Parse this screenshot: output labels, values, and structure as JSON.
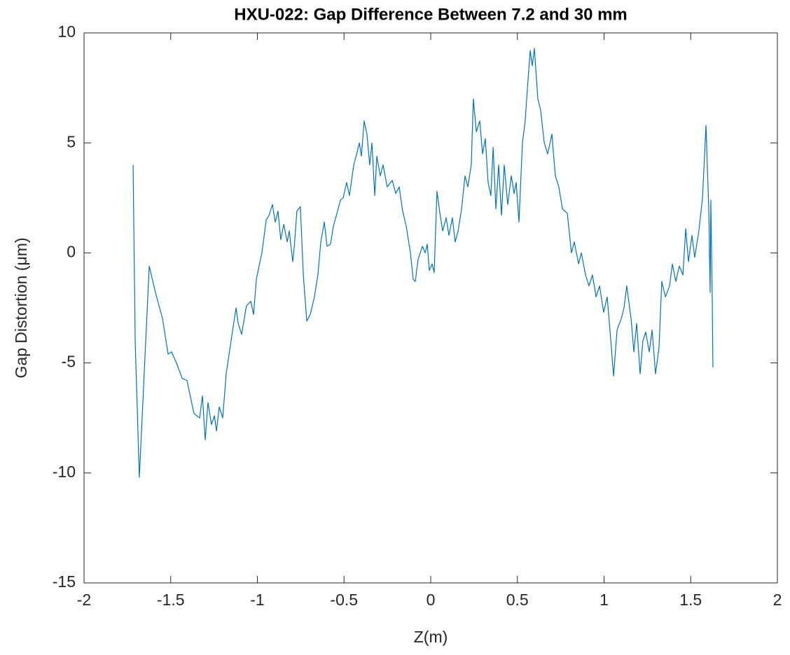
{
  "chart_data": {
    "type": "line",
    "title": "HXU-022: Gap Difference Between 7.2 and 30 mm",
    "x_label": "Z(m)",
    "y_label": "Gap Distortion (μm)",
    "color": "#0072bd",
    "grid": false,
    "xlim": [
      -2,
      2
    ],
    "xticks": [
      -2,
      -1.5,
      -1,
      -0.5,
      0,
      0.5,
      1,
      1.5,
      2
    ],
    "ylim": [
      -15,
      10
    ],
    "yticks": [
      -15,
      -10,
      -5,
      0,
      5,
      10
    ],
    "x": [
      -1.717,
      -1.705,
      -1.681,
      -1.624,
      -1.588,
      -1.547,
      -1.515,
      -1.495,
      -1.467,
      -1.434,
      -1.406,
      -1.366,
      -1.333,
      -1.317,
      -1.301,
      -1.285,
      -1.265,
      -1.248,
      -1.236,
      -1.22,
      -1.2,
      -1.18,
      -1.152,
      -1.123,
      -1.111,
      -1.091,
      -1.063,
      -1.038,
      -1.022,
      -1.006,
      -0.974,
      -0.949,
      -0.933,
      -0.913,
      -0.897,
      -0.881,
      -0.865,
      -0.848,
      -0.828,
      -0.816,
      -0.796,
      -0.788,
      -0.772,
      -0.752,
      -0.735,
      -0.715,
      -0.695,
      -0.671,
      -0.651,
      -0.634,
      -0.614,
      -0.598,
      -0.578,
      -0.562,
      -0.541,
      -0.521,
      -0.505,
      -0.485,
      -0.469,
      -0.444,
      -0.424,
      -0.412,
      -0.4,
      -0.384,
      -0.368,
      -0.352,
      -0.339,
      -0.323,
      -0.311,
      -0.291,
      -0.275,
      -0.251,
      -0.222,
      -0.202,
      -0.182,
      -0.162,
      -0.141,
      -0.117,
      -0.101,
      -0.089,
      -0.073,
      -0.048,
      -0.032,
      -0.02,
      -0.008,
      0.008,
      0.02,
      0.036,
      0.053,
      0.069,
      0.089,
      0.105,
      0.125,
      0.141,
      0.158,
      0.178,
      0.198,
      0.214,
      0.234,
      0.246,
      0.263,
      0.283,
      0.299,
      0.315,
      0.331,
      0.347,
      0.36,
      0.376,
      0.392,
      0.408,
      0.424,
      0.444,
      0.465,
      0.481,
      0.493,
      0.509,
      0.529,
      0.545,
      0.558,
      0.574,
      0.586,
      0.598,
      0.618,
      0.634,
      0.655,
      0.675,
      0.699,
      0.719,
      0.739,
      0.76,
      0.788,
      0.812,
      0.828,
      0.853,
      0.869,
      0.893,
      0.913,
      0.933,
      0.954,
      0.974,
      0.998,
      1.018,
      1.034,
      1.055,
      1.075,
      1.099,
      1.115,
      1.131,
      1.156,
      1.172,
      1.188,
      1.208,
      1.224,
      1.24,
      1.261,
      1.277,
      1.297,
      1.317,
      1.333,
      1.354,
      1.378,
      1.394,
      1.414,
      1.434,
      1.455,
      1.471,
      1.487,
      1.507,
      1.523,
      1.547,
      1.568,
      1.588,
      1.604,
      1.612,
      1.616,
      1.624,
      1.628
    ],
    "values": [
      4,
      -4,
      -10.2,
      -0.6,
      -1.8,
      -3,
      -4.6,
      -4.5,
      -5,
      -5.7,
      -5.8,
      -7.3,
      -7.5,
      -6.5,
      -8.5,
      -6.8,
      -7.8,
      -7.4,
      -8.1,
      -7,
      -7.5,
      -5.5,
      -4,
      -2.5,
      -3.2,
      -3.7,
      -2.4,
      -2.2,
      -2.8,
      -1.2,
      0,
      1.5,
      1.7,
      2.2,
      1.4,
      1.9,
      0.6,
      1.3,
      0.5,
      1,
      -0.4,
      0.2,
      1.9,
      2.1,
      -1,
      -3.1,
      -2.8,
      -2,
      -1,
      0.5,
      1.4,
      0.3,
      0.4,
      1.2,
      1.8,
      2.4,
      2.5,
      3.2,
      2.6,
      4,
      4.6,
      5,
      4.4,
      6,
      5.4,
      4,
      5,
      2.6,
      4.4,
      3.5,
      4,
      3,
      3.3,
      2.7,
      3,
      1.9,
      1.2,
      0,
      -1.2,
      -1.3,
      -0.3,
      0.3,
      0,
      0.4,
      -0.8,
      -0.5,
      -0.9,
      2.8,
      1.8,
      1,
      1.6,
      0.8,
      1.6,
      0.5,
      1,
      2,
      3.5,
      3,
      4,
      7,
      5.5,
      6,
      4.5,
      5.2,
      3.2,
      2.6,
      4.8,
      2,
      4,
      1.7,
      4,
      2.2,
      3.5,
      2.7,
      3.2,
      1.4,
      5,
      6,
      7.5,
      9.2,
      8.5,
      9.3,
      7,
      6.5,
      5,
      4.5,
      5.4,
      3.5,
      3,
      2,
      1.8,
      0,
      0.5,
      -0.5,
      0,
      -1,
      -1.5,
      -1,
      -2,
      -1.5,
      -2.7,
      -2,
      -3.5,
      -5.6,
      -3.5,
      -3,
      -2.5,
      -1.5,
      -3,
      -4.5,
      -3.2,
      -5.5,
      -4,
      -3.6,
      -4.5,
      -3.5,
      -5.5,
      -4.3,
      -1.3,
      -2,
      -1.5,
      -0.5,
      -1.3,
      -0.6,
      -1,
      1.1,
      -0.4,
      0.8,
      -0.2,
      1,
      2.5,
      5.8,
      2,
      -1.8,
      2.4,
      -2,
      -5.2
    ]
  }
}
